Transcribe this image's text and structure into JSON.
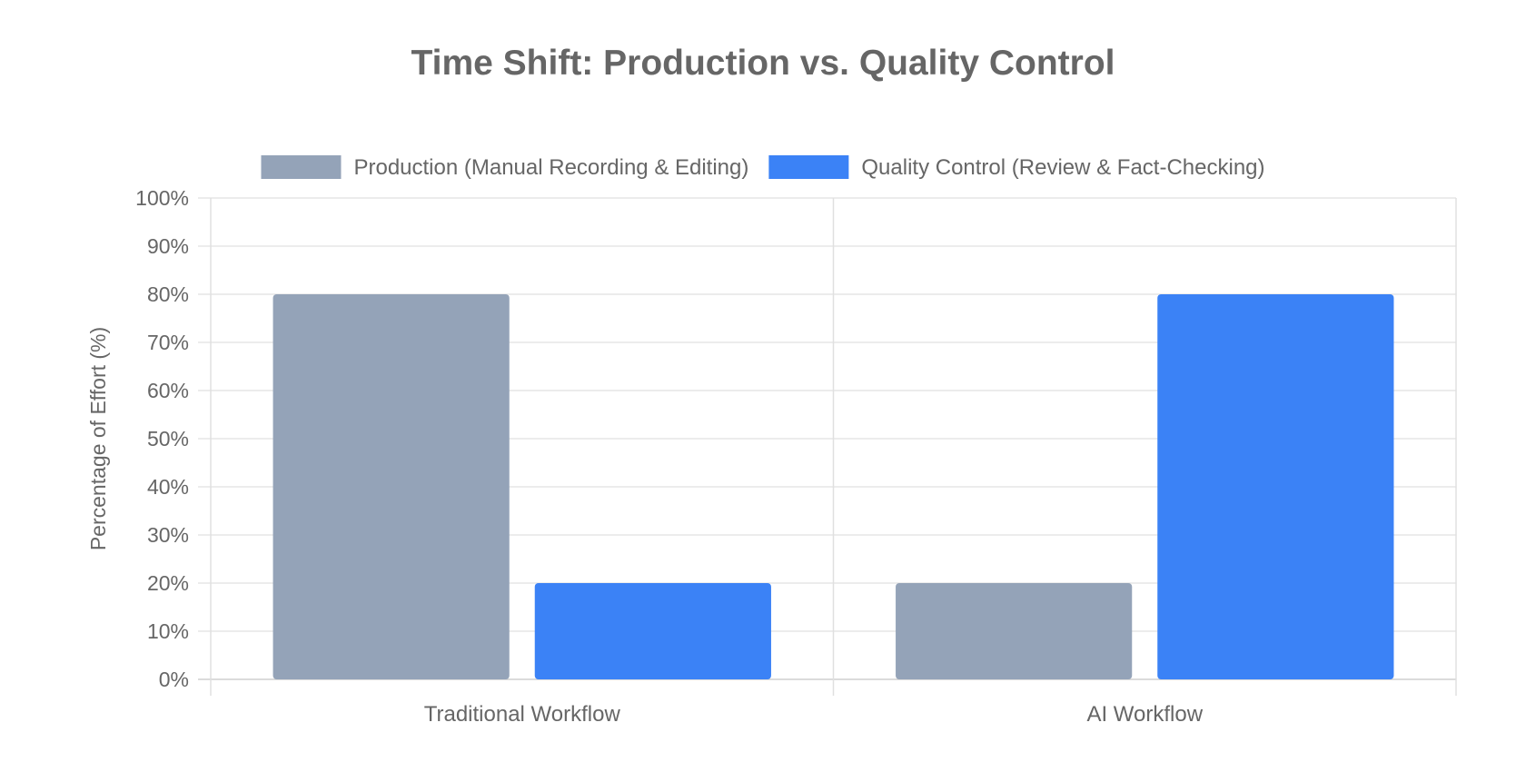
{
  "chart_data": {
    "type": "bar",
    "title": "Time Shift: Production vs. Quality Control",
    "xlabel": "",
    "ylabel": "Percentage of Effort (%)",
    "ylim": [
      0,
      100
    ],
    "ytick_step": 10,
    "ytick_suffix": "%",
    "categories": [
      "Traditional Workflow",
      "AI Workflow"
    ],
    "series": [
      {
        "name": "Production (Manual Recording & Editing)",
        "values": [
          80,
          20
        ],
        "color": "#94a3b8"
      },
      {
        "name": "Quality Control (Review & Fact-Checking)",
        "values": [
          20,
          80
        ],
        "color": "#3b82f6"
      }
    ],
    "legend": "top-center",
    "grid": true
  }
}
